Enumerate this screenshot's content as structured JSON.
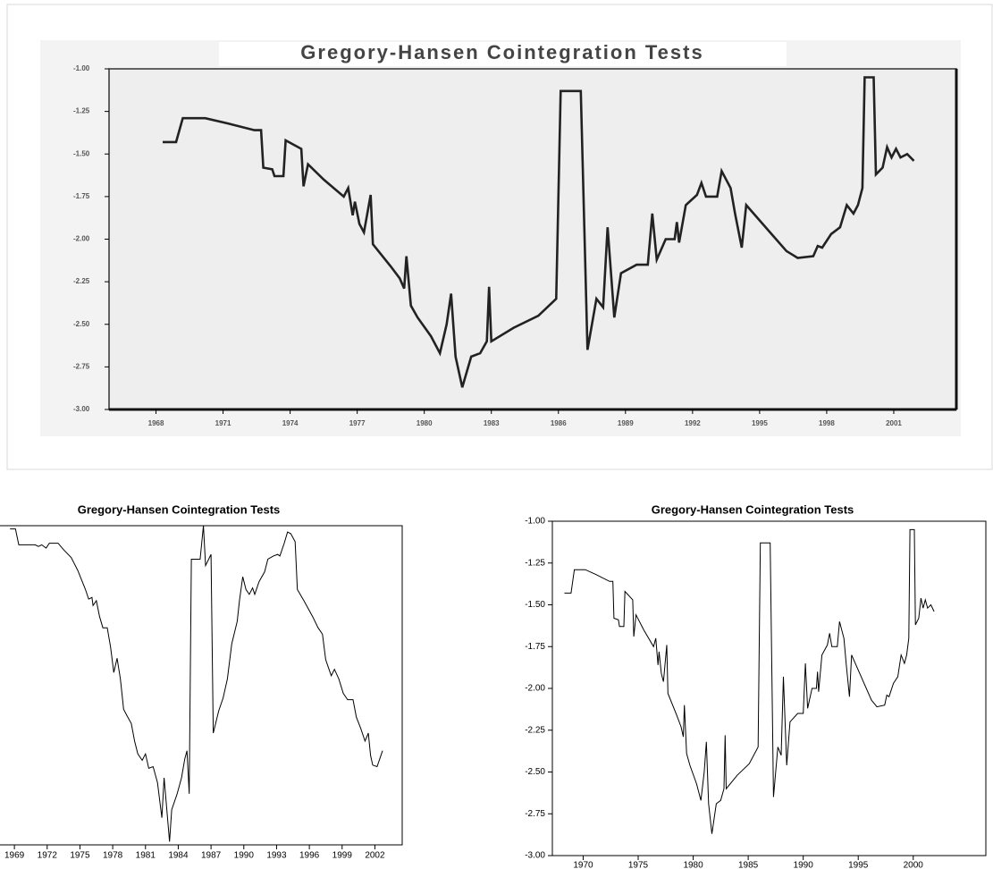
{
  "chart_data": [
    {
      "type": "line",
      "title": "Gregory-Hansen Cointegration Tests",
      "color": "#222222",
      "x": [
        1968.3,
        1968.9,
        1969.2,
        1970.2,
        1971.2,
        1972.4,
        1972.7,
        1972.8,
        1973.2,
        1973.3,
        1973.7,
        1973.8,
        1974.5,
        1974.6,
        1974.8,
        1975.5,
        1976.4,
        1976.6,
        1976.8,
        1976.9,
        1977.1,
        1977.3,
        1977.6,
        1977.7,
        1978.5,
        1978.9,
        1979.1,
        1979.2,
        1979.4,
        1979.7,
        1980.3,
        1980.7,
        1981.0,
        1981.2,
        1981.4,
        1981.7,
        1982.1,
        1982.5,
        1982.8,
        1982.9,
        1983.0,
        1984.0,
        1985.1,
        1985.9,
        1986.1,
        1987.0,
        1987.3,
        1987.7,
        1988.0,
        1988.2,
        1988.5,
        1988.8,
        1989.5,
        1990.0,
        1990.2,
        1990.4,
        1990.8,
        1991.2,
        1991.3,
        1991.4,
        1991.7,
        1992.2,
        1992.4,
        1992.6,
        1993.1,
        1993.3,
        1993.7,
        1993.9,
        1994.2,
        1994.4,
        1995.4,
        1996.2,
        1996.7,
        1997.4,
        1997.6,
        1997.8,
        1998.2,
        1998.6,
        1998.9,
        1999.2,
        1999.4,
        1999.6,
        1999.7,
        2000.1,
        2000.2,
        2000.5,
        2000.7,
        2000.9,
        2001.1,
        2001.3,
        2001.6,
        2001.9
      ],
      "values": [
        -1.43,
        -1.43,
        -1.29,
        -1.29,
        -1.32,
        -1.36,
        -1.36,
        -1.58,
        -1.59,
        -1.63,
        -1.63,
        -1.42,
        -1.47,
        -1.69,
        -1.56,
        -1.65,
        -1.75,
        -1.7,
        -1.86,
        -1.78,
        -1.91,
        -1.96,
        -1.74,
        -2.03,
        -2.16,
        -2.23,
        -2.29,
        -2.1,
        -2.39,
        -2.46,
        -2.57,
        -2.67,
        -2.5,
        -2.32,
        -2.69,
        -2.87,
        -2.69,
        -2.67,
        -2.6,
        -2.28,
        -2.6,
        -2.52,
        -2.45,
        -2.35,
        -1.13,
        -1.13,
        -2.65,
        -2.35,
        -2.4,
        -1.93,
        -2.46,
        -2.2,
        -2.15,
        -2.15,
        -1.85,
        -2.12,
        -2.0,
        -2.0,
        -1.9,
        -2.02,
        -1.8,
        -1.74,
        -1.67,
        -1.75,
        -1.75,
        -1.6,
        -1.7,
        -1.85,
        -2.05,
        -1.8,
        -1.95,
        -2.07,
        -2.11,
        -2.1,
        -2.04,
        -2.05,
        -1.97,
        -1.93,
        -1.8,
        -1.85,
        -1.8,
        -1.7,
        -1.05,
        -1.05,
        -1.62,
        -1.58,
        -1.46,
        -1.52,
        -1.47,
        -1.52,
        -1.5,
        -1.54
      ],
      "xlim": [
        1965.9,
        2003.8
      ],
      "xticks": [
        1968,
        1971,
        1974,
        1977,
        1980,
        1983,
        1986,
        1989,
        1992,
        1995,
        1998,
        2001
      ],
      "ylim": [
        -3,
        -1
      ],
      "yticks": [
        {
          "value": -1,
          "label": "-1.00"
        },
        {
          "value": -1.25,
          "label": "-1.25"
        },
        {
          "value": -1.5,
          "label": "-1.50"
        },
        {
          "value": -1.75,
          "label": "-1.75"
        },
        {
          "value": -2,
          "label": "-2.00"
        },
        {
          "value": -2.25,
          "label": "-2.25"
        },
        {
          "value": -2.5,
          "label": "-2.50"
        },
        {
          "value": -2.75,
          "label": "-2.75"
        },
        {
          "value": -3,
          "label": "-3.00"
        }
      ]
    },
    {
      "type": "line",
      "title": "Gregory-Hansen Cointegration Tests",
      "color": "#000000",
      "x": [
        1968.6,
        1969.1,
        1969.4,
        1970.9,
        1971.2,
        1971.5,
        1971.9,
        1972.2,
        1973.0,
        1973.5,
        1974.2,
        1974.8,
        1975.5,
        1975.8,
        1976.1,
        1976.2,
        1976.5,
        1976.8,
        1977.1,
        1977.5,
        1977.8,
        1978.1,
        1978.4,
        1978.7,
        1979.0,
        1979.3,
        1979.7,
        1980.0,
        1980.3,
        1980.7,
        1981.0,
        1981.3,
        1981.7,
        1982.1,
        1982.5,
        1982.7,
        1983.2,
        1983.4,
        1983.9,
        1984.3,
        1984.6,
        1984.8,
        1985.0,
        1985.2,
        1986.0,
        1986.3,
        1986.5,
        1987.0,
        1987.2,
        1987.7,
        1988.1,
        1988.5,
        1988.9,
        1989.4,
        1989.6,
        1989.9,
        1990.2,
        1990.5,
        1990.8,
        1991.0,
        1991.4,
        1991.9,
        1992.2,
        1992.7,
        1993.1,
        1993.3,
        1993.7,
        1994.0,
        1994.3,
        1994.7,
        1994.9,
        1995.5,
        1996.3,
        1996.8,
        1997.2,
        1997.5,
        1998.0,
        1998.3,
        1998.7,
        1999.1,
        1999.5,
        2000.0,
        2000.3,
        2000.7,
        2001.1,
        2001.4,
        2001.6,
        2001.8,
        2002.2,
        2002.7
      ],
      "values": [
        -1.02,
        -1.02,
        -1.12,
        -1.12,
        -1.13,
        -1.12,
        -1.14,
        -1.11,
        -1.11,
        -1.15,
        -1.2,
        -1.28,
        -1.4,
        -1.46,
        -1.45,
        -1.5,
        -1.47,
        -1.57,
        -1.64,
        -1.64,
        -1.76,
        -1.92,
        -1.83,
        -1.96,
        -2.15,
        -2.19,
        -2.24,
        -2.35,
        -2.43,
        -2.47,
        -2.43,
        -2.52,
        -2.51,
        -2.61,
        -2.83,
        -2.58,
        -2.98,
        -2.78,
        -2.68,
        -2.58,
        -2.46,
        -2.41,
        -2.68,
        -1.21,
        -1.21,
        -1.0,
        -1.25,
        -1.18,
        -2.3,
        -2.16,
        -2.08,
        -1.96,
        -1.74,
        -1.6,
        -1.47,
        -1.32,
        -1.4,
        -1.43,
        -1.39,
        -1.43,
        -1.35,
        -1.29,
        -1.21,
        -1.19,
        -1.18,
        -1.19,
        -1.11,
        -1.04,
        -1.05,
        -1.1,
        -1.4,
        -1.47,
        -1.57,
        -1.64,
        -1.68,
        -1.84,
        -1.94,
        -1.9,
        -1.96,
        -2.05,
        -2.09,
        -2.09,
        -2.2,
        -2.27,
        -2.35,
        -2.3,
        -2.44,
        -2.5,
        -2.51,
        -2.41
      ],
      "xlim": [
        1967.6,
        2004.5
      ],
      "xticks": [
        1969,
        1972,
        1975,
        1978,
        1981,
        1984,
        1987,
        1990,
        1993,
        1996,
        1999,
        2002
      ],
      "ylim": [
        -3,
        -1
      ]
    },
    {
      "type": "line",
      "title": "Gregory-Hansen Cointegration Tests",
      "color": "#000000",
      "x": [
        1968.3,
        1968.9,
        1969.2,
        1970.2,
        1971.2,
        1972.4,
        1972.7,
        1972.8,
        1973.2,
        1973.3,
        1973.7,
        1973.8,
        1974.5,
        1974.6,
        1974.8,
        1975.5,
        1976.4,
        1976.6,
        1976.8,
        1976.9,
        1977.1,
        1977.3,
        1977.6,
        1977.7,
        1978.5,
        1978.9,
        1979.1,
        1979.2,
        1979.4,
        1979.7,
        1980.3,
        1980.7,
        1981.0,
        1981.2,
        1981.4,
        1981.7,
        1982.1,
        1982.5,
        1982.8,
        1982.9,
        1983.0,
        1984.0,
        1985.1,
        1985.9,
        1986.1,
        1987.0,
        1987.3,
        1987.7,
        1988.0,
        1988.2,
        1988.5,
        1988.8,
        1989.5,
        1990.0,
        1990.2,
        1990.4,
        1990.8,
        1991.2,
        1991.3,
        1991.4,
        1991.7,
        1992.2,
        1992.4,
        1992.6,
        1993.1,
        1993.3,
        1993.7,
        1993.9,
        1994.2,
        1994.4,
        1995.4,
        1996.2,
        1996.7,
        1997.4,
        1997.6,
        1997.8,
        1998.2,
        1998.6,
        1998.9,
        1999.2,
        1999.4,
        1999.6,
        1999.7,
        2000.1,
        2000.2,
        2000.5,
        2000.7,
        2000.9,
        2001.1,
        2001.3,
        2001.6,
        2001.9
      ],
      "values": [
        -1.43,
        -1.43,
        -1.29,
        -1.29,
        -1.32,
        -1.36,
        -1.36,
        -1.58,
        -1.59,
        -1.63,
        -1.63,
        -1.42,
        -1.47,
        -1.69,
        -1.56,
        -1.65,
        -1.75,
        -1.7,
        -1.86,
        -1.78,
        -1.91,
        -1.96,
        -1.74,
        -2.03,
        -2.16,
        -2.23,
        -2.29,
        -2.1,
        -2.39,
        -2.46,
        -2.57,
        -2.67,
        -2.5,
        -2.32,
        -2.69,
        -2.87,
        -2.69,
        -2.67,
        -2.6,
        -2.28,
        -2.6,
        -2.52,
        -2.45,
        -2.35,
        -1.13,
        -1.13,
        -2.65,
        -2.35,
        -2.4,
        -1.93,
        -2.46,
        -2.2,
        -2.15,
        -2.15,
        -1.85,
        -2.12,
        -2.0,
        -2.0,
        -1.9,
        -2.02,
        -1.8,
        -1.74,
        -1.67,
        -1.75,
        -1.75,
        -1.6,
        -1.7,
        -1.85,
        -2.05,
        -1.8,
        -1.95,
        -2.07,
        -2.11,
        -2.1,
        -2.04,
        -2.05,
        -1.97,
        -1.93,
        -1.8,
        -1.85,
        -1.8,
        -1.7,
        -1.05,
        -1.05,
        -1.62,
        -1.58,
        -1.46,
        -1.52,
        -1.47,
        -1.52,
        -1.5,
        -1.54
      ],
      "xlim": [
        1967.2,
        2006.6
      ],
      "xticks": [
        1970,
        1975,
        1980,
        1985,
        1990,
        1995,
        2000
      ],
      "ylim": [
        -3,
        -1
      ],
      "yticks": [
        {
          "value": -1,
          "label": "-1.00"
        },
        {
          "value": -1.25,
          "label": "-1.25"
        },
        {
          "value": -1.5,
          "label": "-1.50"
        },
        {
          "value": -1.75,
          "label": "-1.75"
        },
        {
          "value": -2,
          "label": "-2.00"
        },
        {
          "value": -2.25,
          "label": "-2.25"
        },
        {
          "value": -2.5,
          "label": "-2.50"
        },
        {
          "value": -2.75,
          "label": "-2.75"
        },
        {
          "value": -3,
          "label": "-3.00"
        }
      ]
    }
  ]
}
